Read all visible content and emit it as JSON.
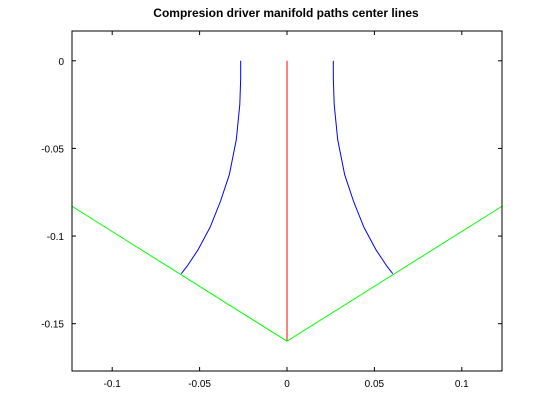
{
  "chart_data": {
    "type": "line",
    "title": "Compresion driver manifold paths center lines",
    "xlabel": "",
    "ylabel": "",
    "xlim": [
      -0.123,
      0.123
    ],
    "ylim": [
      -0.177,
      0.017
    ],
    "grid": false,
    "x_ticks": [
      {
        "value": -0.1,
        "label": "-0.1"
      },
      {
        "value": -0.05,
        "label": "-0.05"
      },
      {
        "value": 0,
        "label": "0"
      },
      {
        "value": 0.05,
        "label": "0.05"
      },
      {
        "value": 0.1,
        "label": "0.1"
      }
    ],
    "y_ticks": [
      {
        "value": 0,
        "label": "0"
      },
      {
        "value": -0.05,
        "label": "-0.05"
      },
      {
        "value": -0.1,
        "label": "-0.1"
      },
      {
        "value": -0.15,
        "label": "-0.15"
      }
    ],
    "series": [
      {
        "color": "#0000ff",
        "x": [
          -0.0265,
          -0.0265,
          -0.027,
          -0.029,
          -0.033,
          -0.038,
          -0.044,
          -0.051,
          -0.057,
          -0.0605
        ],
        "y": [
          0,
          -0.01,
          -0.025,
          -0.045,
          -0.065,
          -0.08,
          -0.095,
          -0.108,
          -0.117,
          -0.1215
        ]
      },
      {
        "color": "#0000ff",
        "x": [
          0.0265,
          0.0265,
          0.027,
          0.029,
          0.033,
          0.038,
          0.044,
          0.051,
          0.057,
          0.0605
        ],
        "y": [
          0,
          -0.01,
          -0.025,
          -0.045,
          -0.065,
          -0.08,
          -0.095,
          -0.108,
          -0.117,
          -0.1215
        ]
      },
      {
        "color": "#ff0000",
        "x": [
          0,
          0
        ],
        "y": [
          0,
          -0.16
        ]
      },
      {
        "color": "#00ff00",
        "x": [
          -0.123,
          0,
          0.123
        ],
        "y": [
          -0.083,
          -0.16,
          -0.083
        ]
      }
    ]
  }
}
